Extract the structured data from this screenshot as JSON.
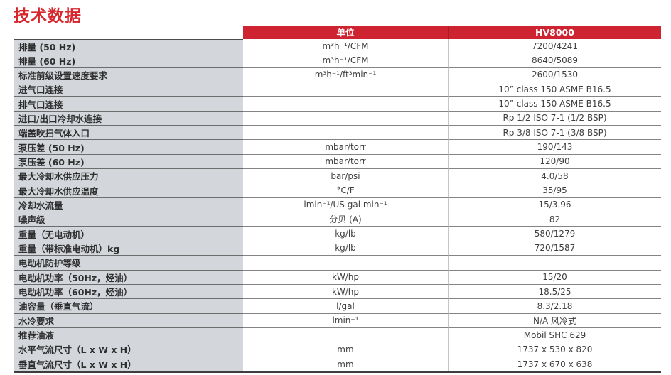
{
  "title": "技术数据",
  "colors": {
    "title_red": "#d8262d",
    "header_red": "#ce2331",
    "label_bg": "#d3d6db"
  },
  "table": {
    "header": {
      "unit": "单位",
      "model": "HV8000"
    },
    "rows": [
      {
        "label": "排量 (50 Hz)",
        "unit": "m³h⁻¹/CFM",
        "value": "7200/4241"
      },
      {
        "label": "排量 (60 Hz)",
        "unit": "m³h⁻¹/CFM",
        "value": "8640/5089"
      },
      {
        "label": "标准前级设置速度要求",
        "unit": "m³h⁻¹/ft³min⁻¹",
        "value": "2600/1530"
      },
      {
        "label": "进气口连接",
        "unit": "",
        "value": "10” class 150 ASME B16.5"
      },
      {
        "label": "排气口连接",
        "unit": "",
        "value": "10” class 150 ASME B16.5"
      },
      {
        "label": "进口/出口冷却水连接",
        "unit": "",
        "value": "Rp 1/2 ISO 7-1 (1/2 BSP)"
      },
      {
        "label": "端盖吹扫气体入口",
        "unit": "",
        "value": "Rp 3/8 ISO 7-1 (3/8 BSP)"
      },
      {
        "label": "泵压差 (50 Hz)",
        "unit": "mbar/torr",
        "value": "190/143"
      },
      {
        "label": "泵压差 (60 Hz)",
        "unit": "mbar/torr",
        "value": "120/90"
      },
      {
        "label": "最大冷却水供应压力",
        "unit": "bar/psi",
        "value": "4.0/58"
      },
      {
        "label": "最大冷却水供应温度",
        "unit": "°C/F",
        "value": "35/95"
      },
      {
        "label": "冷却水流量",
        "unit": "lmin⁻¹/US gal min⁻¹",
        "value": "15/3.96"
      },
      {
        "label": "噪声级",
        "unit": "分贝 (A)",
        "value": "82"
      },
      {
        "label": "重量（无电动机）",
        "unit": "kg/lb",
        "value": "580/1279"
      },
      {
        "label": "重量（带标准电动机）kg",
        "unit": "kg/lb",
        "value": "720/1587"
      },
      {
        "label": "电动机防护等级",
        "unit": "",
        "value": ""
      },
      {
        "label": "电动机功率（50Hz，烃油）",
        "unit": "kW/hp",
        "value": "15/20"
      },
      {
        "label": "电动机功率（60Hz，烃油）",
        "unit": "kW/hp",
        "value": "18.5/25"
      },
      {
        "label": "油容量（垂直气流）",
        "unit": "l/gal",
        "value": "8.3/2.18"
      },
      {
        "label": "水冷要求",
        "unit": "lmin⁻¹",
        "value": "N/A 风冷式"
      },
      {
        "label": "推荐油液",
        "unit": "",
        "value": "Mobil SHC 629"
      },
      {
        "label": "水平气流尺寸（L x W x H）",
        "unit": "mm",
        "value": "1737 x 530 x 820"
      },
      {
        "label": "垂直气流尺寸（L x W x H）",
        "unit": "mm",
        "value": "1737 x 670 x 638"
      }
    ]
  }
}
